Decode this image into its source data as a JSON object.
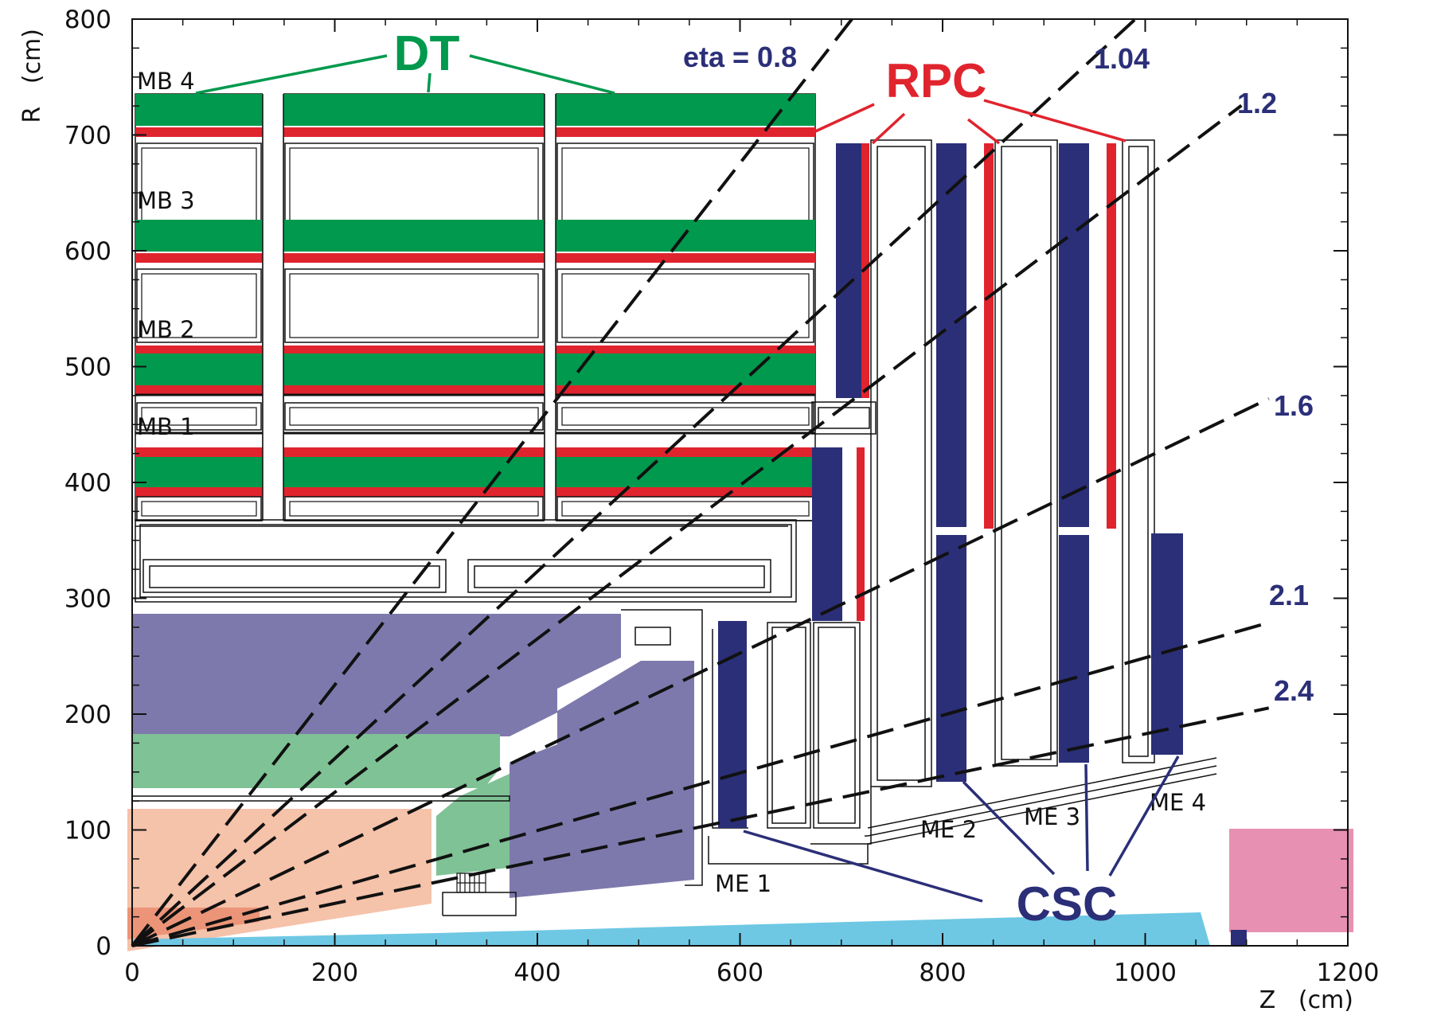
{
  "axes": {
    "x_label": "Z   (cm)",
    "y_label": "R   (cm)",
    "x_ticks": [
      "0",
      "200",
      "400",
      "600",
      "800",
      "1000",
      "1200"
    ],
    "y_ticks": [
      "0",
      "100",
      "200",
      "300",
      "400",
      "500",
      "600",
      "700",
      "800"
    ],
    "x_range": [
      0,
      1200
    ],
    "y_range": [
      0,
      800
    ]
  },
  "barrel_stations": [
    "MB 4",
    "MB 3",
    "MB 2",
    "MB 1"
  ],
  "endcap_stations": [
    "ME 1",
    "ME 2",
    "ME 3",
    "ME 4"
  ],
  "technologies": {
    "dt": "DT",
    "rpc": "RPC",
    "csc": "CSC"
  },
  "eta_lines": [
    {
      "label": "eta = 0.8",
      "eta": 0.8
    },
    {
      "label": "1.04",
      "eta": 1.04
    },
    {
      "label": "1.2",
      "eta": 1.2
    },
    {
      "label": "1.6",
      "eta": 1.6
    },
    {
      "label": "2.1",
      "eta": 2.1
    },
    {
      "label": "2.4",
      "eta": 2.4
    }
  ],
  "colors": {
    "dt": "#00994d",
    "rpc": "#e0242e",
    "csc": "#2b2f78",
    "hcal": "#7e79ac",
    "ecal": "#7fc295",
    "tracker": "#f5c2aa",
    "pixel": "#ec9478",
    "beampipe": "#6ec8e4",
    "shield": "#e890b2",
    "eta_text": "#2b2f78"
  }
}
